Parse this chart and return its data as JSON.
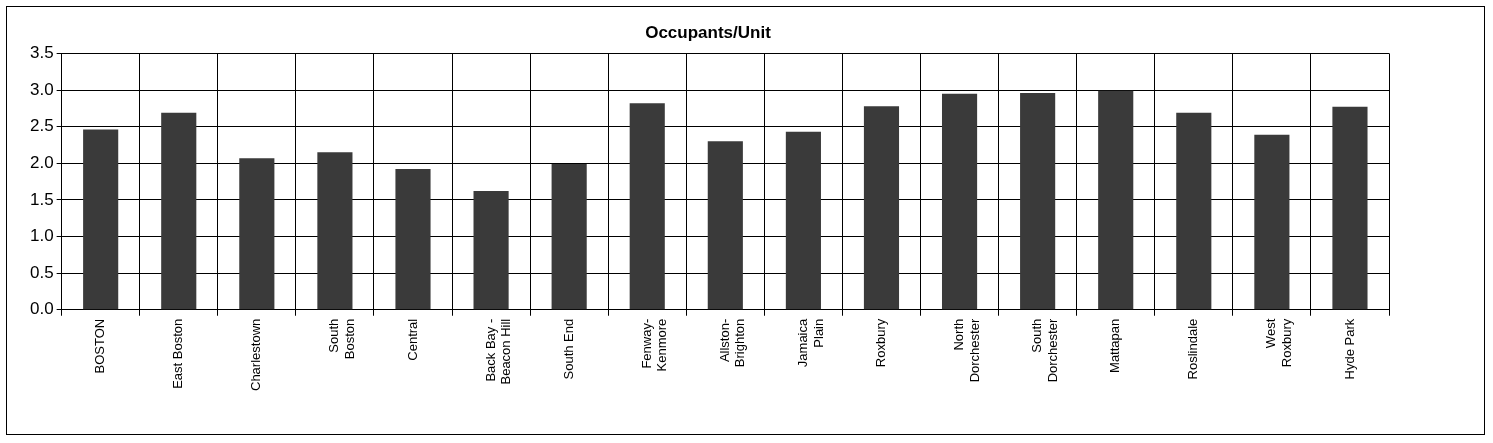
{
  "chart_data": {
    "type": "bar",
    "title": "Occupants/Unit",
    "categories": [
      "BOSTON",
      "East Boston",
      "Charlestown",
      "South Boston",
      "Central",
      "Back Bay - Beacon Hill",
      "South End",
      "Fenway-Kenmore",
      "Allston-Brighton",
      "Jamaica Plain",
      "Roxbury",
      "North Dorchester",
      "South Dorchester",
      "Mattapan",
      "Roslindale",
      "West Roxbury",
      "Hyde Park"
    ],
    "values": [
      2.46,
      2.69,
      2.07,
      2.15,
      1.92,
      1.62,
      1.99,
      2.82,
      2.3,
      2.43,
      2.78,
      2.95,
      2.96,
      2.99,
      2.69,
      2.39,
      2.77
    ],
    "color": "#3a3a3a",
    "ylim": [
      0,
      3.5
    ],
    "yticks": [
      {
        "value": 0,
        "label": "0.0"
      },
      0.5,
      {
        "value": 1,
        "label": "1.0"
      },
      1.5,
      {
        "value": 2,
        "label": "2.0"
      },
      2.5,
      {
        "value": 3,
        "label": "3.0"
      },
      3.5
    ],
    "grid": true,
    "legend": false
  }
}
